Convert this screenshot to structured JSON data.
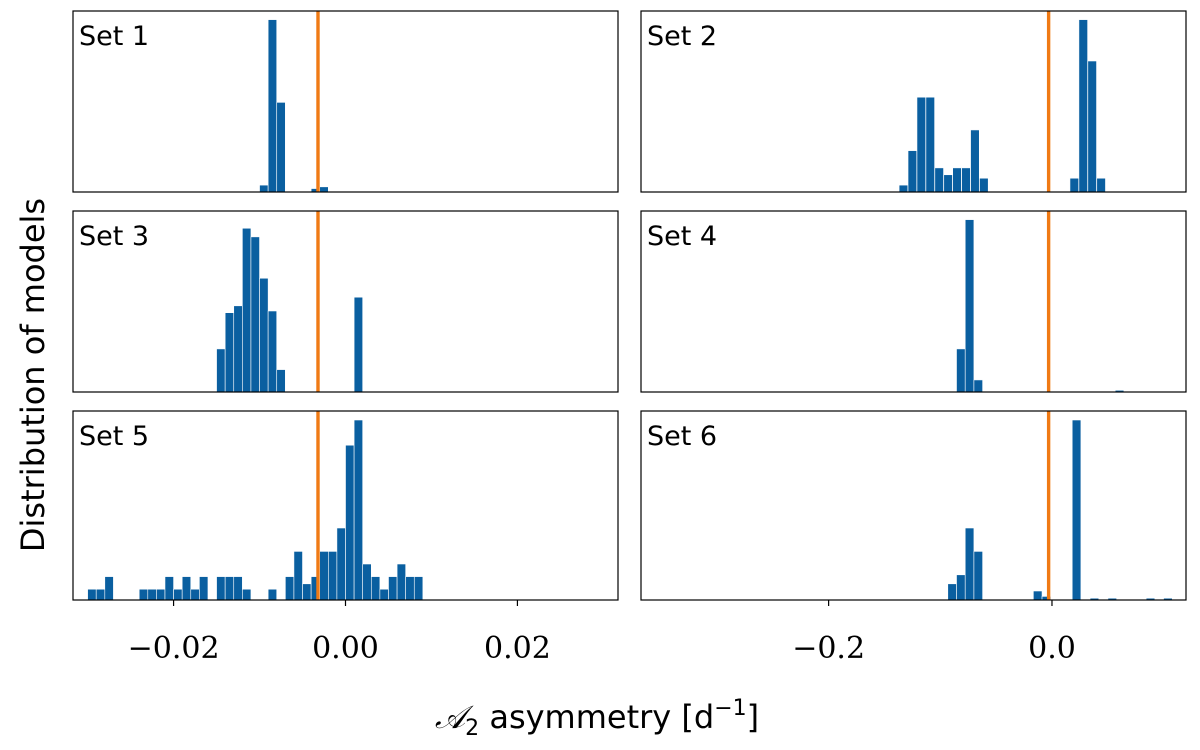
{
  "chart_data": {
    "type": "bar",
    "ylabel": "Distribution of models",
    "xlabel": {
      "script": "𝒜",
      "sub": "2",
      "text": " asymmetry [d",
      "sup": "−1",
      "close": "]"
    },
    "colors": {
      "bars": "#0a5fa0",
      "vline": "#f07a14",
      "frame": "#000000"
    },
    "columns": [
      {
        "xlim": [
          -0.0317,
          0.0317
        ],
        "ticks": [
          -0.02,
          0.0,
          0.02
        ],
        "tick_labels": [
          "−0.02",
          "0.00",
          "0.02"
        ]
      },
      {
        "xlim": [
          -0.368,
          0.12
        ],
        "ticks": [
          -0.2,
          0.0
        ],
        "tick_labels": [
          "−0.2",
          "0.0"
        ]
      }
    ],
    "panels": [
      {
        "label": "Set 1",
        "col": 0,
        "row": 0,
        "vline": -0.0032,
        "ymax": 1.05,
        "bin_width": 0.001,
        "bins": [
          [
            -0.0095,
            0.04
          ],
          [
            -0.0085,
            1.0
          ],
          [
            -0.0075,
            0.52
          ],
          [
            -0.0035,
            0.02
          ],
          [
            -0.0025,
            0.03
          ]
        ]
      },
      {
        "label": "Set 2",
        "col": 1,
        "row": 0,
        "vline": -0.003,
        "ymax": 1.05,
        "bin_width": 0.0078,
        "bins": [
          [
            -0.133,
            0.04
          ],
          [
            -0.125,
            0.24
          ],
          [
            -0.117,
            0.55
          ],
          [
            -0.109,
            0.55
          ],
          [
            -0.101,
            0.14
          ],
          [
            -0.093,
            0.1
          ],
          [
            -0.085,
            0.14
          ],
          [
            -0.077,
            0.14
          ],
          [
            -0.069,
            0.36
          ],
          [
            -0.061,
            0.08
          ],
          [
            0.02,
            0.08
          ],
          [
            0.028,
            1.0
          ],
          [
            0.036,
            0.76
          ],
          [
            0.044,
            0.08
          ]
        ]
      },
      {
        "label": "Set 3",
        "col": 0,
        "row": 1,
        "vline": -0.0032,
        "ymax": 1.05,
        "bin_width": 0.001,
        "bins": [
          [
            -0.0145,
            0.25
          ],
          [
            -0.0135,
            0.46
          ],
          [
            -0.0125,
            0.5
          ],
          [
            -0.0115,
            0.95
          ],
          [
            -0.0105,
            0.9
          ],
          [
            -0.0095,
            0.66
          ],
          [
            -0.0085,
            0.47
          ],
          [
            -0.0075,
            0.13
          ],
          [
            0.0015,
            0.55
          ]
        ]
      },
      {
        "label": "Set 4",
        "col": 1,
        "row": 1,
        "vline": -0.003,
        "ymax": 1.05,
        "bin_width": 0.0078,
        "bins": [
          [
            -0.0816,
            0.25
          ],
          [
            -0.0738,
            1.0
          ],
          [
            -0.066,
            0.07
          ],
          [
            0.0605,
            0.01
          ]
        ]
      },
      {
        "label": "Set 5",
        "col": 0,
        "row": 2,
        "vline": -0.0032,
        "ymax": 1.05,
        "bin_width": 0.001,
        "bins": [
          [
            -0.0295,
            0.06
          ],
          [
            -0.0285,
            0.06
          ],
          [
            -0.0275,
            0.13
          ],
          [
            -0.0235,
            0.06
          ],
          [
            -0.0225,
            0.06
          ],
          [
            -0.0215,
            0.06
          ],
          [
            -0.0205,
            0.13
          ],
          [
            -0.0195,
            0.06
          ],
          [
            -0.0185,
            0.13
          ],
          [
            -0.0175,
            0.06
          ],
          [
            -0.0165,
            0.13
          ],
          [
            -0.0145,
            0.13
          ],
          [
            -0.0135,
            0.13
          ],
          [
            -0.0125,
            0.13
          ],
          [
            -0.0115,
            0.06
          ],
          [
            -0.0085,
            0.06
          ],
          [
            -0.0065,
            0.13
          ],
          [
            -0.0055,
            0.27
          ],
          [
            -0.0045,
            0.09
          ],
          [
            -0.0035,
            0.13
          ],
          [
            -0.0025,
            0.27
          ],
          [
            -0.0015,
            0.27
          ],
          [
            -0.0005,
            0.4
          ],
          [
            0.0005,
            0.86
          ],
          [
            0.0015,
            1.0
          ],
          [
            0.0025,
            0.2
          ],
          [
            0.0035,
            0.13
          ],
          [
            0.0045,
            0.06
          ],
          [
            0.0055,
            0.13
          ],
          [
            0.0065,
            0.2
          ],
          [
            0.0075,
            0.13
          ],
          [
            0.0085,
            0.13
          ]
        ]
      },
      {
        "label": "Set 6",
        "col": 1,
        "row": 2,
        "vline": -0.003,
        "ymax": 1.05,
        "bin_width": 0.0078,
        "bins": [
          [
            -0.0894,
            0.09
          ],
          [
            -0.0816,
            0.14
          ],
          [
            -0.0738,
            0.4
          ],
          [
            -0.066,
            0.27
          ],
          [
            -0.0128,
            0.05
          ],
          [
            -0.005,
            0.02
          ],
          [
            0.022,
            1.0
          ],
          [
            0.038,
            0.01
          ],
          [
            0.054,
            0.01
          ],
          [
            0.0882,
            0.01
          ],
          [
            0.1038,
            0.01
          ]
        ]
      }
    ]
  }
}
